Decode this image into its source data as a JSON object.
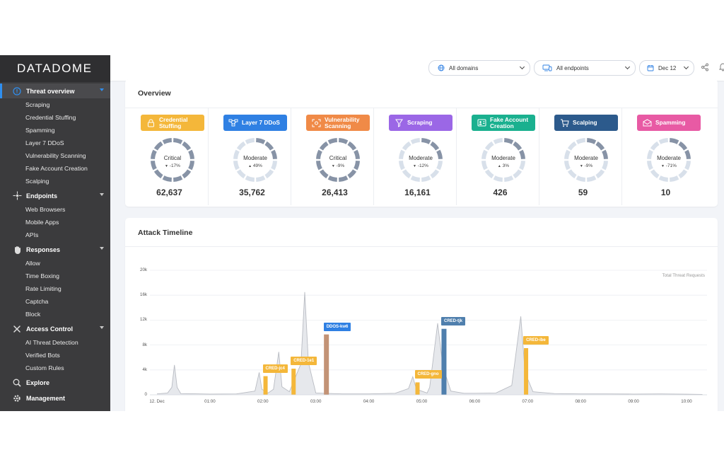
{
  "brand": {
    "logo_text": "DATADOME"
  },
  "sidebar": {
    "sections": [
      {
        "label": "Threat overview",
        "icon": "alert-circle-icon",
        "active": true,
        "expandable": true,
        "items": [
          "Scraping",
          "Credential Stuffing",
          "Spamming",
          "Layer 7 DDoS",
          "Vulnerability Scanning",
          "Fake Account Creation",
          "Scalping"
        ]
      },
      {
        "label": "Endpoints",
        "icon": "endpoints-icon",
        "expandable": true,
        "items": [
          "Web Browsers",
          "Mobile Apps",
          "APIs"
        ]
      },
      {
        "label": "Responses",
        "icon": "hand-icon",
        "expandable": true,
        "items": [
          "Allow",
          "Time Boxing",
          "Rate Limiting",
          "Captcha",
          "Block"
        ]
      },
      {
        "label": "Access Control",
        "icon": "tools-icon",
        "expandable": true,
        "items": [
          "AI Threat Detection",
          "Verified Bots",
          "Custom Rules"
        ]
      },
      {
        "label": "Explore",
        "icon": "explore-icon",
        "expandable": false,
        "items": []
      },
      {
        "label": "Management",
        "icon": "gear-icon",
        "expandable": false,
        "items": []
      }
    ]
  },
  "topbar": {
    "domains": {
      "value": "All domains",
      "icon": "globe-icon"
    },
    "endpoints": {
      "value": "All endpoints",
      "icon": "devices-icon"
    },
    "date": {
      "value": "Dec 12",
      "icon": "calendar-icon"
    },
    "share_icon": "share-icon",
    "bell_icon": "bell-icon"
  },
  "overview": {
    "title": "Overview",
    "threats": [
      {
        "name": "Credential Stuffing",
        "lines": [
          "Credential",
          "Stuffing"
        ],
        "color": "#f4b73a",
        "icon": "lock-icon",
        "level": "Critical",
        "trend": "down",
        "delta": "-17%",
        "count": "62,637"
      },
      {
        "name": "Layer 7 DDoS",
        "lines": [
          "Layer 7 DDoS"
        ],
        "color": "#2f80e3",
        "icon": "network-icon",
        "level": "Moderate",
        "trend": "up",
        "delta": "49%",
        "count": "35,762"
      },
      {
        "name": "Vulnerability Scanning",
        "lines": [
          "Vulnerability",
          "Scanning"
        ],
        "color": "#f08a47",
        "icon": "scan-icon",
        "level": "Critical",
        "trend": "down",
        "delta": "-9%",
        "count": "26,413"
      },
      {
        "name": "Scraping",
        "lines": [
          "Scraping"
        ],
        "color": "#9b67e6",
        "icon": "funnel-icon",
        "level": "Moderate",
        "trend": "down",
        "delta": "-12%",
        "count": "16,161"
      },
      {
        "name": "Fake Account Creation",
        "lines": [
          "Fake Account",
          "Creation"
        ],
        "color": "#1ab08f",
        "icon": "user-card-icon",
        "level": "Moderate",
        "trend": "up",
        "delta": "3%",
        "count": "426"
      },
      {
        "name": "Scalping",
        "lines": [
          "Scalping"
        ],
        "color": "#2c5a8c",
        "icon": "cart-icon",
        "level": "Moderate",
        "trend": "down",
        "delta": "-9%",
        "count": "59"
      },
      {
        "name": "Spamming",
        "lines": [
          "Spamming"
        ],
        "color": "#e85aa4",
        "icon": "envelope-icon",
        "level": "Moderate",
        "trend": "down",
        "delta": "-71%",
        "count": "10"
      }
    ]
  },
  "timeline": {
    "title": "Attack Timeline",
    "legend": "Total Threat Requests"
  },
  "chart_data": {
    "type": "area",
    "title": "Attack Timeline",
    "ylim": [
      0,
      20000
    ],
    "yticks": [
      "20k",
      "16k",
      "12k",
      "8k",
      "4k",
      "0"
    ],
    "xticks": [
      "12. Dec",
      "01:00",
      "02:00",
      "03:00",
      "04:00",
      "05:00",
      "06:00",
      "07:00",
      "08:00",
      "09:00",
      "10:00"
    ],
    "series": [
      {
        "name": "Total Threat Requests",
        "color": "#c4c7cd",
        "points": [
          [
            0.0,
            150
          ],
          [
            0.2,
            300
          ],
          [
            0.28,
            1200
          ],
          [
            0.33,
            4800
          ],
          [
            0.38,
            1200
          ],
          [
            0.45,
            200
          ],
          [
            1,
            120
          ],
          [
            1.5,
            150
          ],
          [
            1.85,
            600
          ],
          [
            1.93,
            3600
          ],
          [
            1.98,
            900
          ],
          [
            2.1,
            300
          ],
          [
            2.2,
            900
          ],
          [
            2.3,
            6900
          ],
          [
            2.36,
            1300
          ],
          [
            2.5,
            500
          ],
          [
            2.72,
            5000
          ],
          [
            2.79,
            16500
          ],
          [
            2.86,
            5200
          ],
          [
            3.0,
            300
          ],
          [
            3.5,
            150
          ],
          [
            4.0,
            150
          ],
          [
            4.5,
            250
          ],
          [
            4.75,
            1000
          ],
          [
            4.83,
            2900
          ],
          [
            4.9,
            900
          ],
          [
            5.1,
            300
          ],
          [
            5.15,
            1200
          ],
          [
            5.3,
            11500
          ],
          [
            5.4,
            4500
          ],
          [
            5.55,
            600
          ],
          [
            5.8,
            250
          ],
          [
            6.0,
            250
          ],
          [
            6.4,
            300
          ],
          [
            6.7,
            1500
          ],
          [
            6.87,
            12600
          ],
          [
            6.95,
            3600
          ],
          [
            7.1,
            500
          ],
          [
            7.5,
            200
          ],
          [
            8,
            150
          ],
          [
            8.5,
            150
          ],
          [
            9,
            120
          ],
          [
            9.5,
            150
          ],
          [
            10,
            100
          ],
          [
            10.3,
            60
          ]
        ]
      }
    ],
    "attacks": [
      {
        "label": "CRED-jc4",
        "time": 2.05,
        "value": 3000,
        "color": "#f4b73a"
      },
      {
        "label": "CRED-1e1",
        "time": 2.58,
        "value": 4200,
        "color": "#f4b73a"
      },
      {
        "label": "DDOS-kw6",
        "time": 3.2,
        "value": 9700,
        "color": "#c39376",
        "tag_color": "#2f80e3"
      },
      {
        "label": "CRED-gno",
        "time": 4.92,
        "value": 2000,
        "color": "#f4b73a"
      },
      {
        "label": "CRED-tjk",
        "time": 5.42,
        "value": 10600,
        "color": "#4f7fad"
      },
      {
        "label": "CRED-ibe",
        "time": 6.97,
        "value": 7500,
        "color": "#f4b73a"
      }
    ]
  }
}
